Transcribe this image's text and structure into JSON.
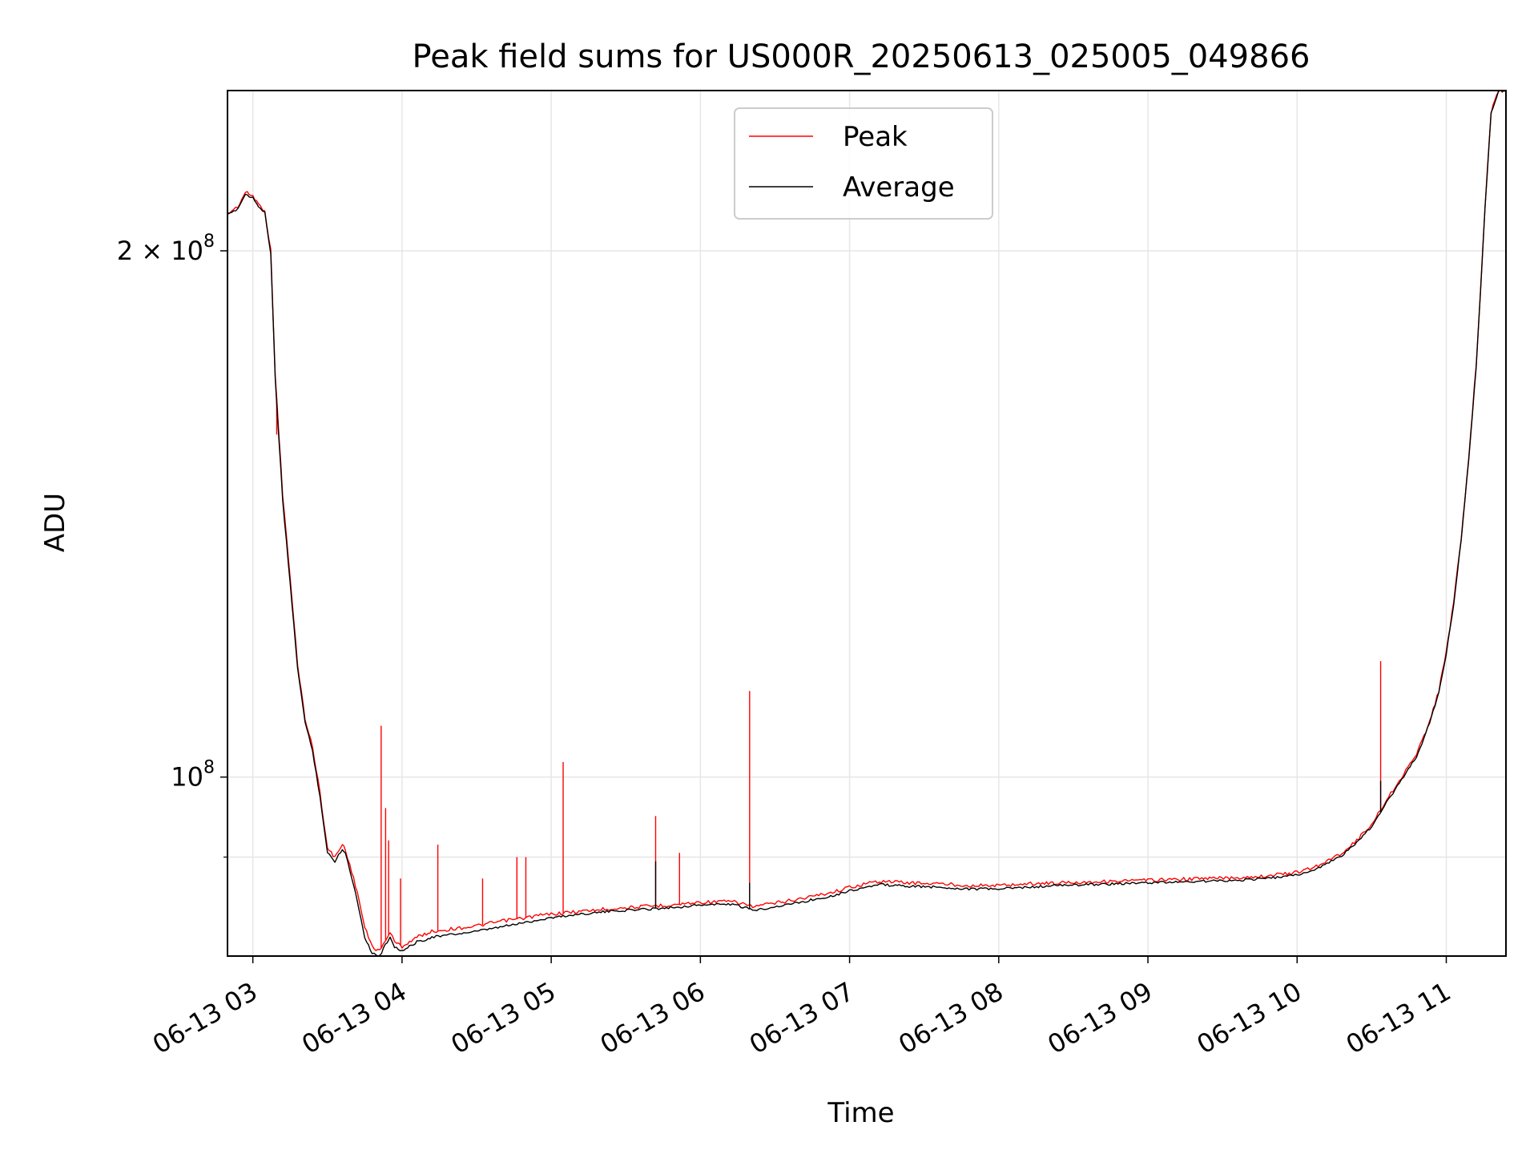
{
  "chart_data": {
    "type": "line",
    "title": "Peak field sums for US000R_20250613_025005_049866",
    "xlabel": "Time",
    "ylabel": "ADU",
    "x_ticks": [
      "06-13 03",
      "06-13 04",
      "06-13 05",
      "06-13 06",
      "06-13 07",
      "06-13 08",
      "06-13 09",
      "06-13 10",
      "06-13 11"
    ],
    "x_tick_hours": [
      3,
      4,
      5,
      6,
      7,
      8,
      9,
      10,
      11
    ],
    "xlim_hours": [
      2.83,
      11.4
    ],
    "y_scale": "log",
    "ylim": [
      79000000,
      247000000
    ],
    "y_tick_labels": [
      {
        "value": 100000000,
        "base": "10",
        "exp": "8",
        "mult": ""
      },
      {
        "value": 200000000,
        "base": "10",
        "exp": "8",
        "mult": "2 × "
      }
    ],
    "y_minor_ticks": [
      90000000
    ],
    "grid": true,
    "legend": {
      "position": "upper center"
    },
    "series": [
      {
        "name": "Peak",
        "color": "#ff0000",
        "x_hours": [
          2.83,
          2.9,
          2.95,
          3.0,
          3.05,
          3.08,
          3.12,
          3.15,
          3.2,
          3.25,
          3.3,
          3.35,
          3.4,
          3.45,
          3.5,
          3.55,
          3.6,
          3.62,
          3.65,
          3.7,
          3.75,
          3.8,
          3.85,
          3.9,
          3.92,
          3.95,
          4.0,
          4.05,
          4.1,
          4.15,
          4.2,
          4.3,
          4.4,
          4.5,
          4.6,
          4.7,
          4.8,
          4.9,
          5.0,
          5.2,
          5.4,
          5.6,
          5.8,
          6.0,
          6.2,
          6.3,
          6.35,
          6.5,
          6.7,
          6.9,
          7.0,
          7.2,
          7.4,
          7.6,
          7.8,
          8.0,
          8.2,
          8.4,
          8.6,
          8.8,
          9.0,
          9.2,
          9.4,
          9.6,
          9.8,
          10.0,
          10.1,
          10.2,
          10.3,
          10.4,
          10.5,
          10.6,
          10.7,
          10.8,
          10.85,
          10.9,
          10.95,
          11.0,
          11.05,
          11.1,
          11.15,
          11.2,
          11.23,
          11.26,
          11.3,
          11.35,
          11.4
        ],
        "values": [
          210000000,
          212000000,
          216000000,
          215000000,
          212000000,
          211000000,
          200000000,
          170000000,
          145000000,
          130000000,
          116000000,
          108000000,
          104000000,
          98000000,
          91000000,
          90000000,
          91500000,
          91000000,
          89000000,
          86000000,
          82000000,
          80000000,
          79500000,
          81000000,
          81500000,
          80500000,
          80000000,
          80500000,
          81000000,
          81300000,
          81600000,
          81800000,
          82000000,
          82200000,
          82500000,
          82800000,
          83000000,
          83300000,
          83500000,
          83800000,
          84100000,
          84300000,
          84500000,
          84800000,
          84900000,
          84600000,
          84300000,
          84700000,
          85300000,
          86000000,
          86500000,
          87200000,
          87000000,
          86900000,
          86700000,
          86700000,
          86900000,
          87000000,
          87100000,
          87200000,
          87300000,
          87400000,
          87500000,
          87600000,
          87800000,
          88200000,
          88700000,
          89500000,
          90500000,
          92000000,
          94000000,
          97000000,
          100000000,
          103000000,
          105500000,
          108500000,
          112000000,
          118000000,
          126000000,
          137000000,
          152000000,
          172000000,
          190000000,
          212000000,
          240000000,
          247000000,
          247000000
        ],
        "spikes": [
          {
            "x_hour": 3.16,
            "value": 157000000
          },
          {
            "x_hour": 3.86,
            "value": 107000000
          },
          {
            "x_hour": 3.89,
            "value": 96000000
          },
          {
            "x_hour": 3.91,
            "value": 92000000
          },
          {
            "x_hour": 3.99,
            "value": 87500000
          },
          {
            "x_hour": 4.24,
            "value": 91500000
          },
          {
            "x_hour": 4.54,
            "value": 87500000
          },
          {
            "x_hour": 4.77,
            "value": 90000000
          },
          {
            "x_hour": 4.83,
            "value": 90000000
          },
          {
            "x_hour": 5.08,
            "value": 102000000
          },
          {
            "x_hour": 5.7,
            "value": 95000000
          },
          {
            "x_hour": 5.86,
            "value": 90500000
          },
          {
            "x_hour": 6.33,
            "value": 112000000
          },
          {
            "x_hour": 10.56,
            "value": 116500000
          },
          {
            "x_hour": 10.93,
            "value": 110500000
          }
        ]
      },
      {
        "name": "Average",
        "color": "#000000",
        "x_hours": [
          2.83,
          2.9,
          2.95,
          3.0,
          3.05,
          3.08,
          3.12,
          3.15,
          3.2,
          3.25,
          3.3,
          3.35,
          3.4,
          3.45,
          3.5,
          3.55,
          3.6,
          3.62,
          3.65,
          3.7,
          3.75,
          3.8,
          3.85,
          3.9,
          3.92,
          3.95,
          4.0,
          4.05,
          4.1,
          4.15,
          4.2,
          4.3,
          4.4,
          4.5,
          4.6,
          4.7,
          4.8,
          4.9,
          5.0,
          5.2,
          5.4,
          5.6,
          5.8,
          6.0,
          6.2,
          6.3,
          6.35,
          6.5,
          6.7,
          6.9,
          7.0,
          7.2,
          7.4,
          7.6,
          7.8,
          8.0,
          8.2,
          8.4,
          8.6,
          8.8,
          9.0,
          9.2,
          9.4,
          9.6,
          9.8,
          10.0,
          10.1,
          10.2,
          10.3,
          10.4,
          10.5,
          10.6,
          10.7,
          10.8,
          10.85,
          10.9,
          10.95,
          11.0,
          11.05,
          11.1,
          11.15,
          11.2,
          11.23,
          11.26,
          11.3,
          11.35,
          11.4
        ],
        "values": [
          209500000,
          211500000,
          215500000,
          214500000,
          211500000,
          210500000,
          199000000,
          169000000,
          144000000,
          129000000,
          115500000,
          107500000,
          103500000,
          97500000,
          90500000,
          89500000,
          91000000,
          90500000,
          88500000,
          85000000,
          81000000,
          79300000,
          79000000,
          80500000,
          81000000,
          80000000,
          79500000,
          80000000,
          80500000,
          80700000,
          81000000,
          81200000,
          81400000,
          81600000,
          81900000,
          82200000,
          82500000,
          82800000,
          83100000,
          83500000,
          83800000,
          84000000,
          84200000,
          84500000,
          84600000,
          84200000,
          83900000,
          84300000,
          84900000,
          85600000,
          86100000,
          86800000,
          86600000,
          86500000,
          86300000,
          86300000,
          86500000,
          86700000,
          86800000,
          86900000,
          87000000,
          87100000,
          87200000,
          87300000,
          87500000,
          87900000,
          88400000,
          89200000,
          90200000,
          91700000,
          93700000,
          96700000,
          99700000,
          102700000,
          105200000,
          108200000,
          111700000,
          117700000,
          125700000,
          136700000,
          151700000,
          171700000,
          189700000,
          211700000,
          239700000,
          247000000,
          247000000
        ],
        "spikes": [
          {
            "x_hour": 5.7,
            "value": 89500000
          },
          {
            "x_hour": 6.33,
            "value": 87000000
          },
          {
            "x_hour": 10.56,
            "value": 99500000
          }
        ]
      }
    ]
  }
}
